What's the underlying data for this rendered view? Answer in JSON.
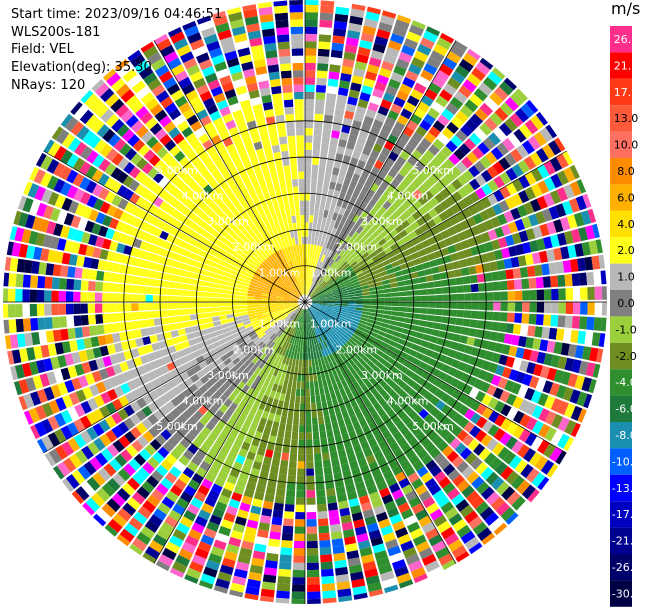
{
  "header": {
    "start_time": "Start time: 2023/09/16 04:46:51",
    "instrument": "WLS200s-181",
    "field": "Field: VEL",
    "elevation": "Elevation(deg): 35.30",
    "nrays": "NRays: 120"
  },
  "colorbar": {
    "unit": "m/s",
    "levels": [
      {
        "label": "26.0",
        "color": "#ff2e8a"
      },
      {
        "label": "21.0",
        "color": "#ff0000"
      },
      {
        "label": "17.0",
        "color": "#ff3b16"
      },
      {
        "label": "13.0",
        "color": "#ff5a3a"
      },
      {
        "label": "10.0",
        "color": "#ff7060"
      },
      {
        "label": "8.0",
        "color": "#ff8c00"
      },
      {
        "label": "6.0",
        "color": "#ffb000"
      },
      {
        "label": "4.0",
        "color": "#ffe000"
      },
      {
        "label": "2.0",
        "color": "#ffff1a"
      },
      {
        "label": "1.0",
        "color": "#b8b8b8"
      },
      {
        "label": "0.0",
        "color": "#7f7f7f"
      },
      {
        "label": "-1.0",
        "color": "#9ccf3c"
      },
      {
        "label": "-2.0",
        "color": "#6e8e22"
      },
      {
        "label": "-4.0",
        "color": "#2f8f2f"
      },
      {
        "label": "-6.0",
        "color": "#1e7a3a"
      },
      {
        "label": "-8.0",
        "color": "#1a8fb0"
      },
      {
        "label": "-10.0",
        "color": "#0060ff"
      },
      {
        "label": "-13.0",
        "color": "#0000ff"
      },
      {
        "label": "-17.0",
        "color": "#0000c0"
      },
      {
        "label": "-21.0",
        "color": "#000090"
      },
      {
        "label": "-26.0",
        "color": "#00006a"
      },
      {
        "label": "-30.0",
        "color": "#000044"
      }
    ]
  },
  "chart_data": {
    "type": "heatmap",
    "projection": "polar-ppi",
    "field": "VEL",
    "nrays": 120,
    "range_rings_km": [
      1.0,
      2.0,
      3.0,
      4.0,
      5.0
    ],
    "ring_label_text": [
      "1.00km",
      "2.00km",
      "3.00km",
      "4.00km",
      "5.00km"
    ],
    "spoke_angles_deg": [
      0,
      30,
      60,
      90,
      120,
      150,
      180,
      210,
      240,
      270,
      300,
      330
    ],
    "max_range_km": 5.0,
    "description_of_pattern": {
      "approaching_sector_deg": [
        100,
        250
      ],
      "receding_sector_deg": [
        280,
        80
      ],
      "inner_noise_free_range_km": 3.3
    }
  }
}
